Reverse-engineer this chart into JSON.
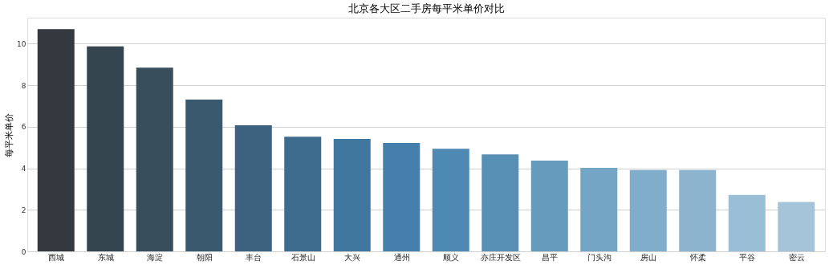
{
  "chart_data": {
    "type": "bar",
    "title": "北京各大区二手房每平米单价对比",
    "ylabel": "每平米单价",
    "categories": [
      "西城",
      "东城",
      "海淀",
      "朝阳",
      "丰台",
      "石景山",
      "大兴",
      "通州",
      "顺义",
      "亦庄开发区",
      "昌平",
      "门头沟",
      "房山",
      "怀柔",
      "平谷",
      "密云"
    ],
    "values": [
      10.7,
      9.87,
      8.84,
      7.31,
      6.07,
      5.52,
      5.41,
      5.22,
      4.94,
      4.67,
      4.37,
      4.02,
      3.91,
      3.91,
      2.72,
      2.38
    ],
    "colors": [
      "#34393f",
      "#354550",
      "#384e5c",
      "#395a6e",
      "#3c6280",
      "#3e6c8f",
      "#3f779e",
      "#4480ab",
      "#4d89b2",
      "#5890b5",
      "#669bbd",
      "#74a5c5",
      "#80adca",
      "#8cb4ce",
      "#9abed6",
      "#a5c4da"
    ],
    "ylim": [
      0,
      11.25
    ],
    "yticks": [
      0,
      2,
      4,
      6,
      8,
      10
    ],
    "grid": "y"
  }
}
